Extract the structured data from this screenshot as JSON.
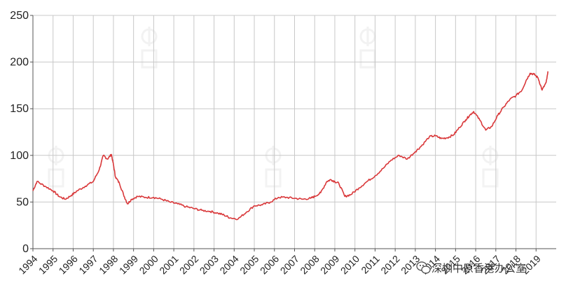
{
  "chart_data": {
    "type": "line",
    "title": "",
    "xlabel": "",
    "ylabel": "",
    "ylim": [
      0,
      250
    ],
    "yticks": [
      0,
      50,
      100,
      150,
      200,
      250
    ],
    "xlim": [
      1994.0,
      2020.0
    ],
    "xtick_labels": [
      "1994",
      "1995",
      "1996",
      "1997",
      "1998",
      "1999",
      "2000",
      "2001",
      "2002",
      "2003",
      "2004",
      "2005",
      "2006",
      "2007",
      "2008",
      "2009",
      "2010",
      "2011",
      "2012",
      "2013",
      "2014",
      "2015",
      "2016",
      "2017",
      "2018",
      "2019"
    ],
    "grid": true,
    "legend": "none",
    "series": [
      {
        "color": "#d9383a",
        "x": [
          1994.0,
          1994.2,
          1994.6,
          1995.0,
          1995.3,
          1995.6,
          1995.9,
          1996.2,
          1996.6,
          1997.0,
          1997.3,
          1997.5,
          1997.7,
          1997.9,
          1998.0,
          1998.1,
          1998.3,
          1998.5,
          1998.7,
          1998.9,
          1999.2,
          1999.6,
          2000.0,
          2000.4,
          2000.8,
          2001.2,
          2001.6,
          2002.0,
          2002.4,
          2002.8,
          2003.2,
          2003.5,
          2003.8,
          2004.2,
          2004.6,
          2005.0,
          2005.4,
          2005.8,
          2006.2,
          2006.6,
          2007.0,
          2007.4,
          2007.8,
          2008.0,
          2008.3,
          2008.6,
          2008.8,
          2009.0,
          2009.2,
          2009.5,
          2009.8,
          2010.2,
          2010.6,
          2011.0,
          2011.4,
          2011.8,
          2012.2,
          2012.6,
          2013.0,
          2013.3,
          2013.7,
          2014.0,
          2014.3,
          2014.6,
          2014.9,
          2015.2,
          2015.5,
          2015.7,
          2015.9,
          2016.2,
          2016.5,
          2016.8,
          2017.1,
          2017.4,
          2017.7,
          2018.0,
          2018.3,
          2018.5,
          2018.7,
          2018.9,
          2019.1,
          2019.3,
          2019.5,
          2019.6
        ],
        "y": [
          62,
          72,
          67,
          62,
          56,
          53,
          57,
          62,
          67,
          72,
          85,
          100,
          96,
          101,
          90,
          77,
          70,
          58,
          48,
          53,
          56,
          55,
          55,
          53,
          50,
          48,
          45,
          43,
          41,
          40,
          38,
          36,
          33,
          32,
          39,
          46,
          47,
          50,
          55,
          55,
          54,
          53,
          54,
          56,
          60,
          72,
          74,
          72,
          70,
          56,
          58,
          65,
          72,
          78,
          86,
          95,
          100,
          96,
          104,
          110,
          120,
          121,
          118,
          119,
          122,
          130,
          138,
          143,
          147,
          138,
          127,
          131,
          143,
          152,
          160,
          164,
          170,
          180,
          188,
          187,
          183,
          170,
          178,
          190
        ]
      }
    ],
    "watermark_text": "深圳中原香港办公室",
    "watermark_icon": "wechat-icon"
  }
}
